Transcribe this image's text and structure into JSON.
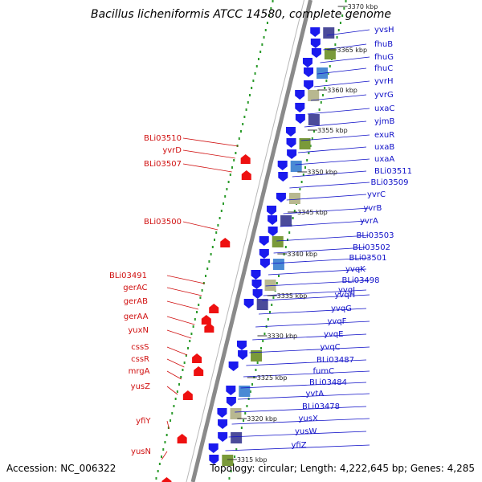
{
  "title": "Bacillus licheniformis ATCC 14580, complete genome",
  "accession": "Accession: NC_006322",
  "topology": "Topology: circular; Length: 4,222,645 bp; Genes: 4,285",
  "colors": {
    "backbone": "#8a8a8a",
    "forward": "#1a1aee",
    "reverse": "#ee1010",
    "ticks_outer": "#2a9a2a",
    "ticks_inner": "#2a9a2a",
    "label_blue": "#1010c8",
    "label_red": "#d01010"
  },
  "kbp_markers": [
    {
      "label": "3370 kbp",
      "pos": 3370
    },
    {
      "label": "3365 kbp",
      "pos": 3365
    },
    {
      "label": "3360 kbp",
      "pos": 3360
    },
    {
      "label": "3355 kbp",
      "pos": 3355
    },
    {
      "label": "3350 kbp",
      "pos": 3350
    },
    {
      "label": "3345 kbp",
      "pos": 3345
    },
    {
      "label": "3340 kbp",
      "pos": 3340
    },
    {
      "label": "3335 kbp",
      "pos": 3335
    },
    {
      "label": "3330 kbp",
      "pos": 3330
    },
    {
      "label": "3325 kbp",
      "pos": 3325
    },
    {
      "label": "3320 kbp",
      "pos": 3320
    },
    {
      "label": "3315 kbp",
      "pos": 3315
    }
  ],
  "forward_genes": [
    "yvsH",
    "fhuB",
    "fhuG",
    "fhuC",
    "yvrH",
    "yvrG",
    "uxaC",
    "yjmB",
    "exuR",
    "uxaB",
    "uxaA",
    "BLi03511",
    "BLi03509",
    "yvrC",
    "yvrB",
    "yvrA",
    "BLi03503",
    "BLi03502",
    "BLi03501",
    "yvqK",
    "BLi03498",
    "yvqI",
    "yvqH",
    "yvqG",
    "yvqF",
    "yvqE",
    "yvqC",
    "BLi03487",
    "fumC",
    "BLi03484",
    "yvtA",
    "BLi03478",
    "yusX",
    "yusW",
    "yfiZ"
  ],
  "reverse_genes": [
    "BLi03510",
    "yvrD",
    "BLi03507",
    "BLi03500",
    "BLi03491",
    "gerAC",
    "gerAB",
    "gerAA",
    "yuxN",
    "cssS",
    "cssR",
    "mrgA",
    "yusZ",
    "yfiY",
    "yusN"
  ]
}
